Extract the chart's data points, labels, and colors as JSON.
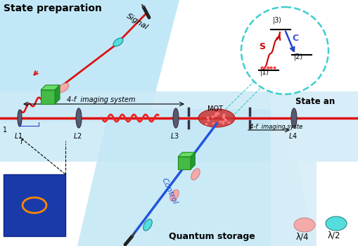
{
  "bg_color": "#ffffff",
  "panel_tl_color": "#c5e8f8",
  "panel_mid_color": "#d0edf9",
  "panel_bot_color": "#c8eaf6",
  "panel_right_color": "#daf0fa",
  "beam_color": "#dd1111",
  "lens_color": "#5a5a6e",
  "green_color": "#3aaa3a",
  "green_light": "#66cc66",
  "green_dark": "#228833",
  "pink_color": "#f5aaaa",
  "cyan_color": "#55dddd",
  "mot_color": "#cc3333",
  "blue_color": "#2255dd",
  "blue_box_color": "#1a3aaa",
  "orange_color": "#ff8800",
  "dashed_circle_color": "#33cccc",
  "state_prep_text": "State preparation",
  "quantum_storage_text": "Quantum storage",
  "state_an_text": "State an",
  "signal_label": "Signal",
  "control_label": "Control",
  "imaging_label_top": "4-f  imaging system",
  "imaging_label_bot": "4-f  imaging syste",
  "mot_label": "MOT",
  "l1_label": "L1",
  "l2_label": "L2",
  "l3_label": "L3",
  "l4_label": "L4",
  "f_label": "f",
  "one_label": "1",
  "lambda4_label": "λ/4",
  "lambda2_label": "λ/2",
  "s_label": "S",
  "c_label": "C",
  "level1": "|1⟩",
  "level2": "|2⟩",
  "level3": "|3⟩"
}
